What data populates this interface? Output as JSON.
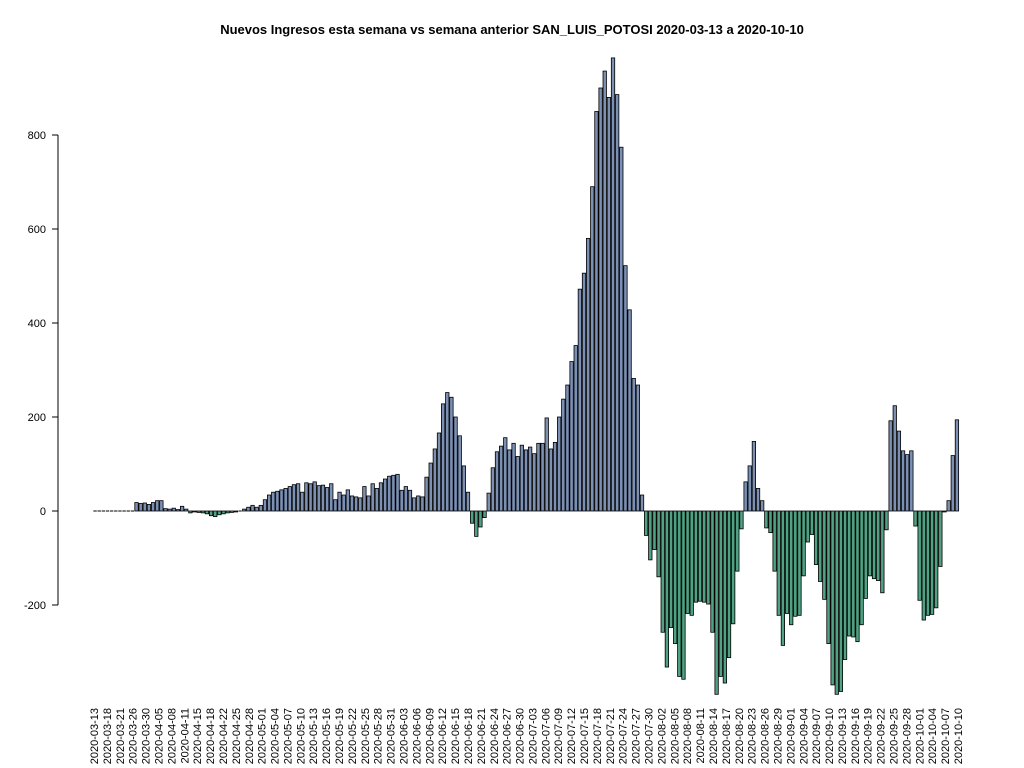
{
  "chart_data": {
    "type": "bar",
    "title": "Nuevos Ingresos esta semana vs semana anterior SAN_LUIS_POTOSI 2020-03-13 a 2020-10-10",
    "xlabel": "",
    "ylabel": "",
    "y_ticks": [
      -200,
      0,
      200,
      400,
      600,
      800
    ],
    "ylim": [
      -400,
      970
    ],
    "x_tick_labels": [
      "2020-03-13",
      "2020-03-18",
      "2020-03-21",
      "2020-03-26",
      "2020-03-30",
      "2020-04-05",
      "2020-04-08",
      "2020-04-11",
      "2020-04-15",
      "2020-04-18",
      "2020-04-22",
      "2020-04-25",
      "2020-04-28",
      "2020-05-01",
      "2020-05-04",
      "2020-05-07",
      "2020-05-10",
      "2020-05-13",
      "2020-05-16",
      "2020-05-19",
      "2020-05-22",
      "2020-05-25",
      "2020-05-28",
      "2020-05-31",
      "2020-06-03",
      "2020-06-06",
      "2020-06-09",
      "2020-06-12",
      "2020-06-15",
      "2020-06-18",
      "2020-06-21",
      "2020-06-24",
      "2020-06-27",
      "2020-06-30",
      "2020-07-03",
      "2020-07-06",
      "2020-07-09",
      "2020-07-12",
      "2020-07-15",
      "2020-07-18",
      "2020-07-21",
      "2020-07-24",
      "2020-07-27",
      "2020-07-30",
      "2020-08-02",
      "2020-08-05",
      "2020-08-08",
      "2020-08-11",
      "2020-08-14",
      "2020-08-17",
      "2020-08-20",
      "2020-08-23",
      "2020-08-26",
      "2020-08-29",
      "2020-09-01",
      "2020-09-04",
      "2020-09-07",
      "2020-09-10",
      "2020-09-13",
      "2020-09-16",
      "2020-09-19",
      "2020-09-22",
      "2020-09-25",
      "2020-09-28",
      "2020-10-01",
      "2020-10-04",
      "2020-10-07",
      "2020-10-10"
    ],
    "positive_color": "#7c90b4",
    "negative_color": "#4fa284",
    "values": [
      0,
      0,
      0,
      0,
      0,
      0,
      0,
      0,
      0,
      0,
      18,
      16,
      17,
      14,
      18,
      22,
      22,
      5,
      4,
      6,
      3,
      10,
      4,
      -4,
      -2,
      -3,
      -4,
      -6,
      -10,
      -12,
      -8,
      -6,
      -4,
      -3,
      -2,
      0,
      4,
      8,
      12,
      8,
      12,
      24,
      34,
      40,
      42,
      45,
      48,
      52,
      56,
      58,
      40,
      60,
      58,
      62,
      54,
      55,
      50,
      58,
      24,
      40,
      34,
      45,
      32,
      30,
      28,
      52,
      32,
      58,
      48,
      60,
      68,
      74,
      76,
      78,
      44,
      52,
      44,
      28,
      32,
      30,
      72,
      102,
      132,
      166,
      228,
      252,
      242,
      200,
      160,
      96,
      40,
      -26,
      -54,
      -34,
      -14,
      38,
      92,
      126,
      138,
      156,
      130,
      144,
      116,
      140,
      130,
      136,
      122,
      144,
      144,
      198,
      132,
      146,
      200,
      238,
      268,
      318,
      352,
      472,
      506,
      580,
      690,
      850,
      900,
      936,
      880,
      964,
      886,
      774,
      522,
      428,
      282,
      268,
      34,
      -52,
      -104,
      -82,
      -140,
      -258,
      -332,
      -248,
      -282,
      -352,
      -358,
      -218,
      -222,
      -194,
      -192,
      -194,
      -198,
      -258,
      -390,
      -352,
      -366,
      -312,
      -240,
      -128,
      -38,
      62,
      96,
      148,
      48,
      22,
      -36,
      -46,
      -128,
      -222,
      -286,
      -218,
      -242,
      -224,
      -222,
      -138,
      -66,
      -50,
      -114,
      -150,
      -188,
      -282,
      -370,
      -390,
      -384,
      -316,
      -266,
      -268,
      -278,
      -242,
      -186,
      -138,
      -144,
      -148,
      -174,
      -40,
      192,
      224,
      170,
      128,
      120,
      128,
      -32,
      -190,
      -232,
      -222,
      -220,
      -206,
      -118,
      -2,
      22,
      118,
      194
    ]
  }
}
